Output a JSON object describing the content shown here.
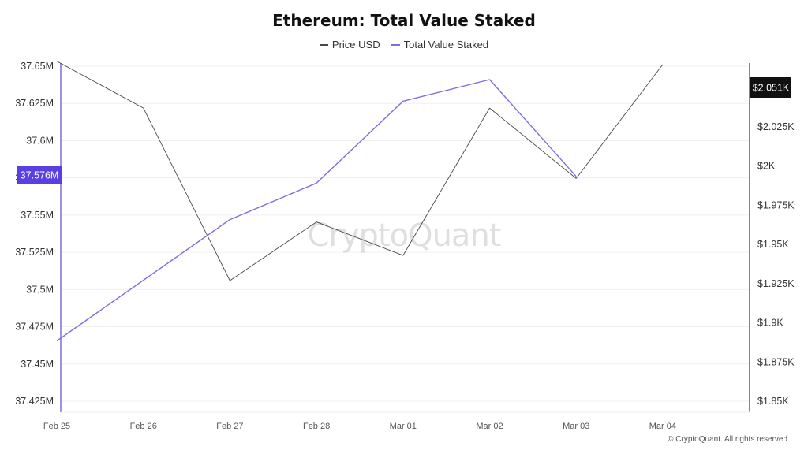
{
  "chart_data": {
    "type": "line",
    "title": "Ethereum: Total Value Staked",
    "x": [
      "Feb 25",
      "Feb 26",
      "Feb 27",
      "Feb 28",
      "Mar 01",
      "Mar 02",
      "Mar 03",
      "Mar 04"
    ],
    "series": [
      {
        "name": "Price USD",
        "axis": "right",
        "color": "#4a4a4a",
        "values": [
          2.053,
          2.025,
          1.922,
          1.957,
          1.937,
          2.025,
          1.983,
          2.051
        ]
      },
      {
        "name": "Total Value Staked",
        "axis": "left",
        "color": "#7b6fe0",
        "values": [
          37.4655,
          null,
          37.547,
          37.5715,
          37.6265,
          37.641,
          37.576,
          null
        ]
      }
    ],
    "y_left": {
      "ticks": [
        "37.65M",
        "37.625M",
        "37.6M",
        "37.575M",
        "37.55M",
        "37.525M",
        "37.5M",
        "37.475M",
        "37.45M",
        "37.425M"
      ],
      "range": [
        37.425,
        37.65
      ]
    },
    "y_right": {
      "ticks": [
        "$2.05K",
        "$2.025K",
        "$2K",
        "$1.975K",
        "$1.95K",
        "$1.925K",
        "$1.9K",
        "$1.875K",
        "$1.85K"
      ],
      "range": [
        1.85,
        2.05
      ]
    },
    "grid": true,
    "legend_position": "top-center",
    "left_badge": {
      "label": "37.576M",
      "color": "#5b3fe0"
    },
    "right_badge": {
      "label": "$2.051K",
      "color": "#111111"
    }
  },
  "watermark": "CryptoQuant",
  "copyright": "© CryptoQuant. All rights reserved"
}
